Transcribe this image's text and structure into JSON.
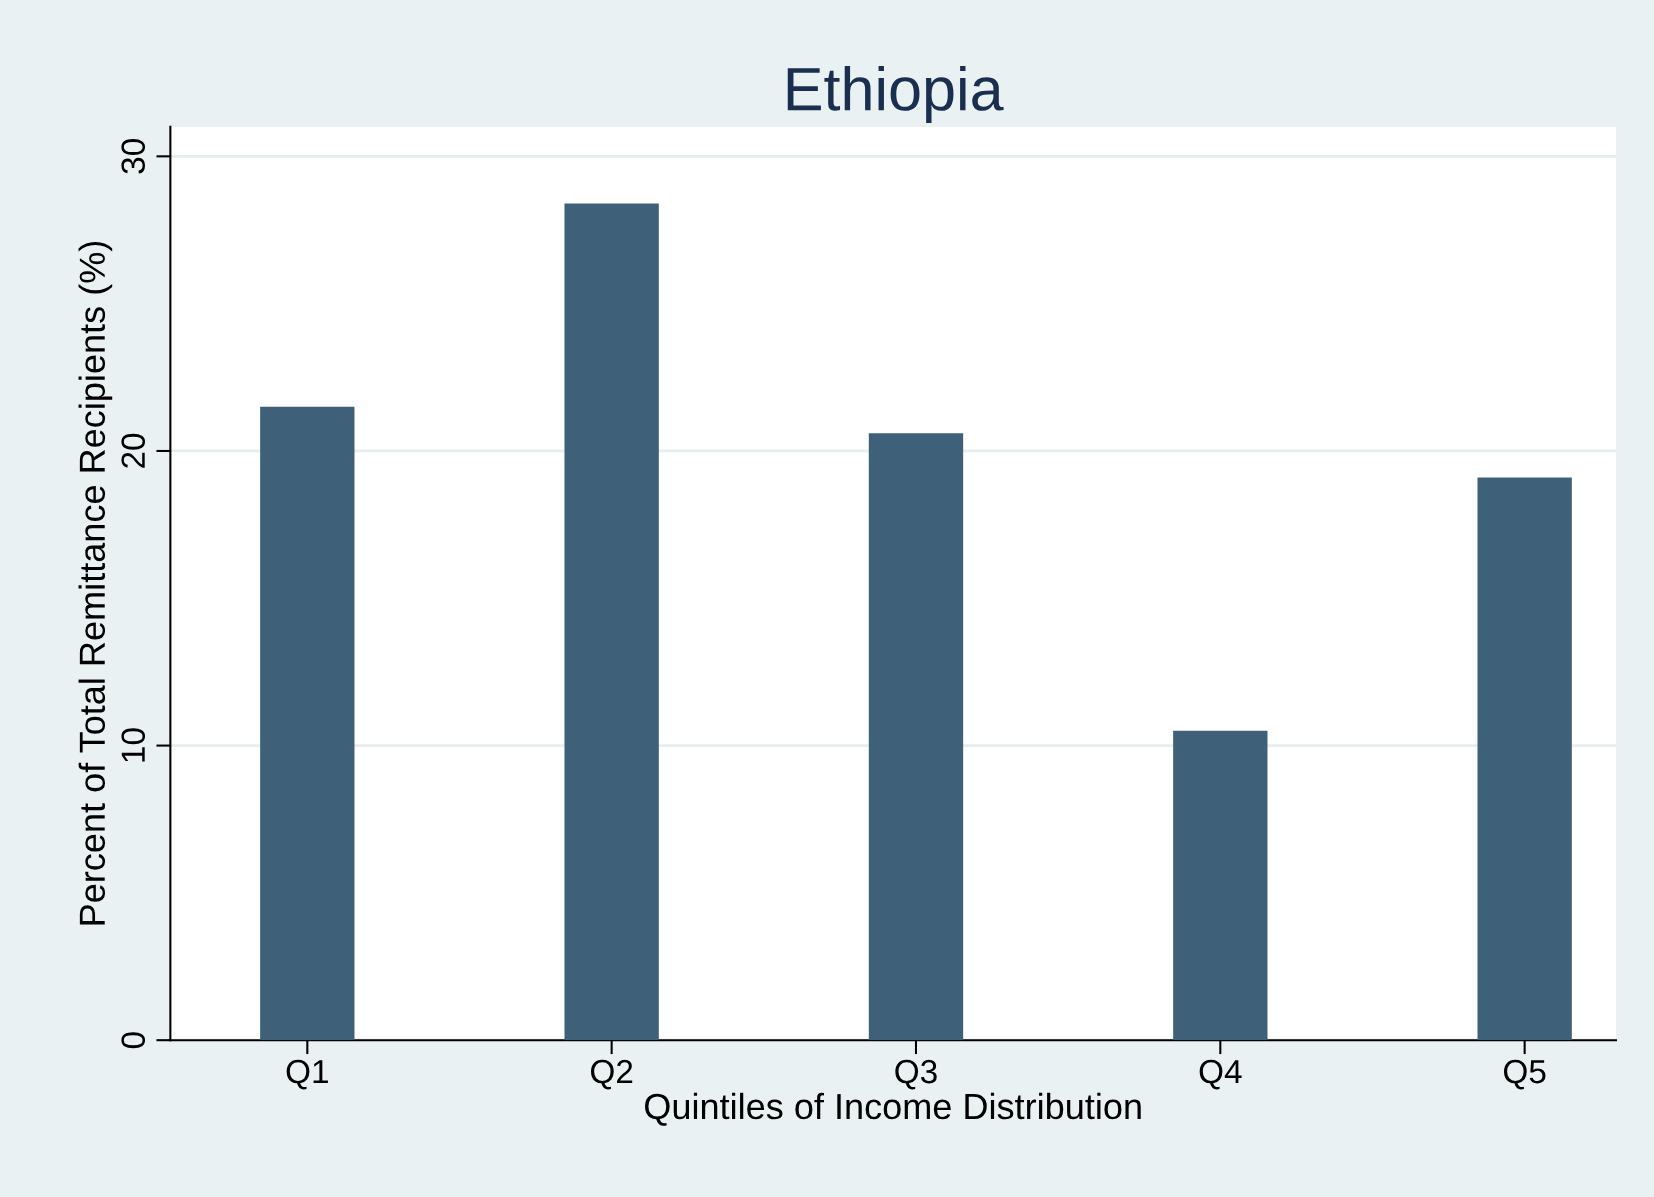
{
  "chart_data": {
    "type": "bar",
    "title": "Ethiopia",
    "xlabel": "Quintiles of Income Distribution",
    "ylabel": "Percent of Total Remittance Recipients (%)",
    "categories": [
      "Q1",
      "Q2",
      "Q3",
      "Q4",
      "Q5"
    ],
    "values": [
      21.5,
      28.4,
      20.6,
      10.5,
      19.1
    ],
    "color": "#3e6079",
    "ylim": [
      0,
      31
    ],
    "yticks": [
      0,
      10,
      20,
      30
    ],
    "grid": "y"
  }
}
